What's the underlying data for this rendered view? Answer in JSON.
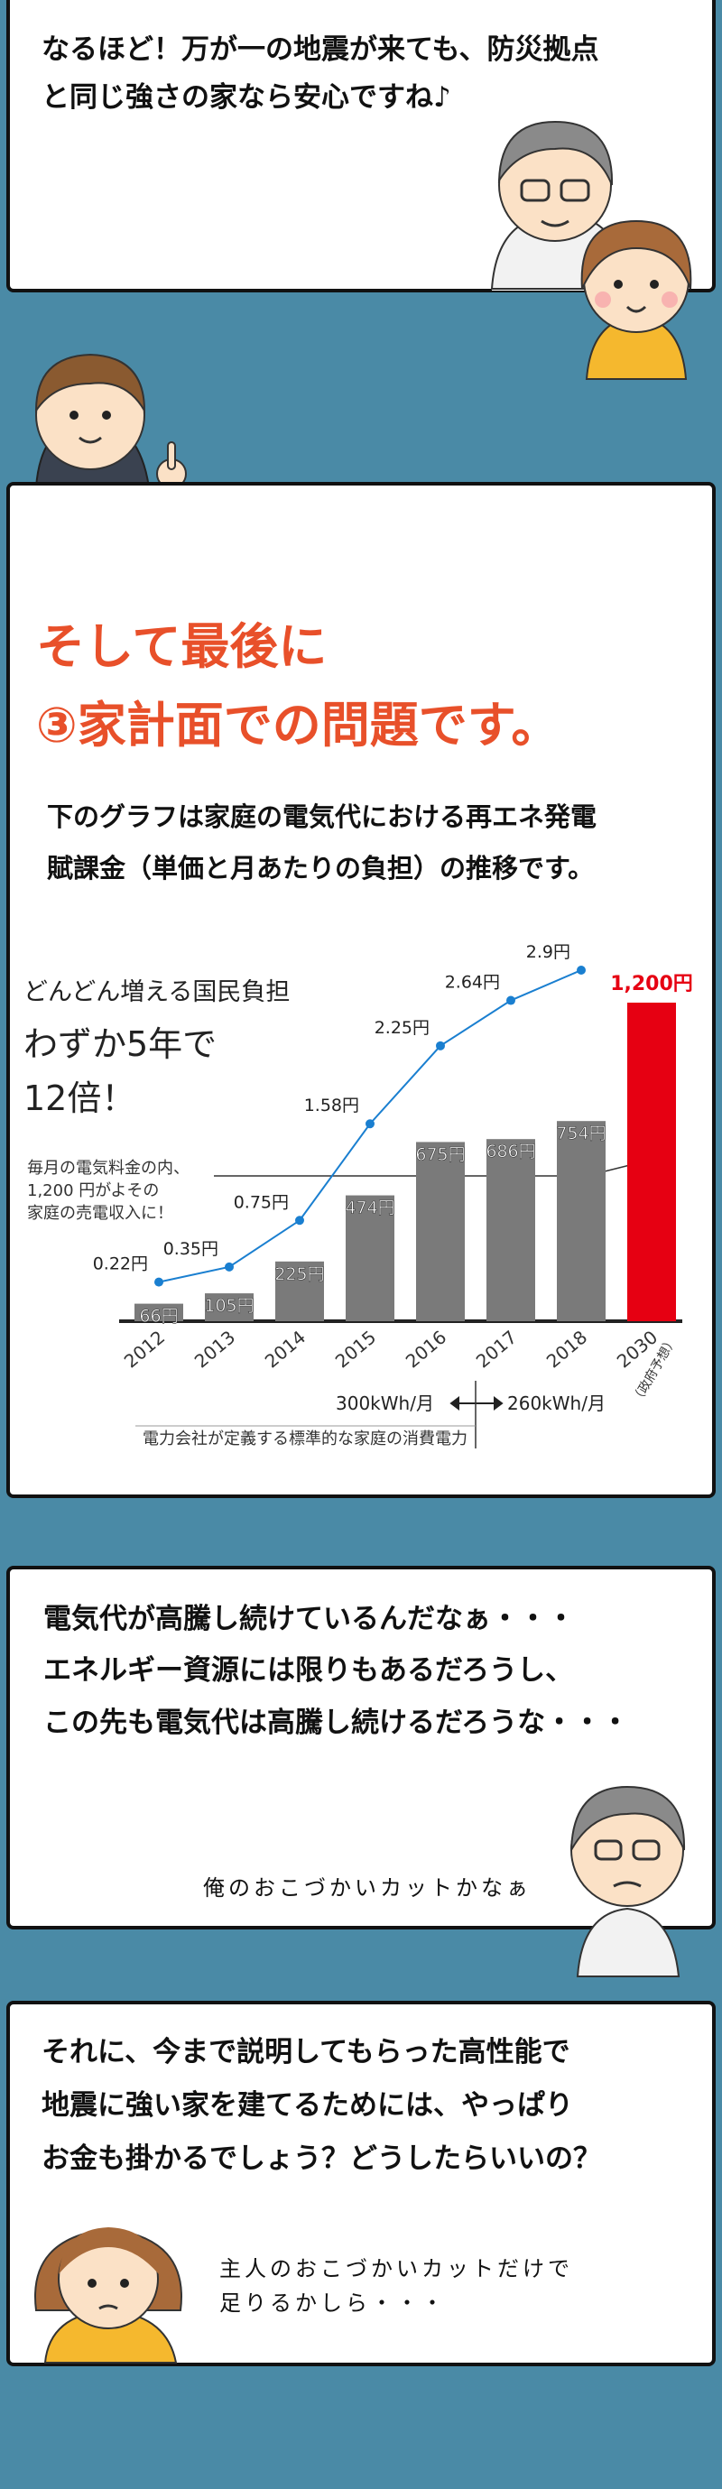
{
  "panels": [
    {
      "lines": [
        "なるほど！万が一の地震が来ても、防災拠点",
        "と同じ強さの家なら安心ですね♪"
      ]
    },
    {
      "heading": [
        "そして最後に",
        "③家計面での問題です。"
      ],
      "lines": [
        "下のグラフは家庭の電気代における再エネ発電",
        "賦課金（単価と月あたりの負担）の推移です。"
      ]
    },
    {
      "lines": [
        "電気代が高騰し続けているんだなぁ・・・",
        "エネルギー資源には限りもあるだろうし、",
        "この先も電気代は高騰し続けるだろうな・・・"
      ],
      "thought": [
        "俺のおこづかいカットかなぁ"
      ]
    },
    {
      "lines": [
        "それに、今まで説明してもらった高性能で",
        "地震に強い家を建てるためには、やっぱり",
        "お金も掛かるでしょう？どうしたらいいの？"
      ],
      "thought": [
        "主人のおこづかいカットだけで",
        "足りるかしら・・・"
      ]
    }
  ],
  "chart_data": {
    "type": "bar",
    "categories": [
      "2012",
      "2013",
      "2014",
      "2015",
      "2016",
      "2017",
      "2018",
      "2030"
    ],
    "category_note": "（政府予想）",
    "series": [
      {
        "type": "bar",
        "colors": [
          "#7a7a7a",
          "#7a7a7a",
          "#7a7a7a",
          "#7a7a7a",
          "#7a7a7a",
          "#7a7a7a",
          "#7a7a7a",
          "#e60012"
        ],
        "values": [
          66,
          105,
          225,
          474,
          675,
          686,
          754,
          1200
        ],
        "value_labels": [
          "66円",
          "105円",
          "225円",
          "474円",
          "675円",
          "686円",
          "754円",
          "1,200円"
        ]
      },
      {
        "type": "line",
        "color": "#1a7fd0",
        "values": [
          0.22,
          0.35,
          0.75,
          1.58,
          2.25,
          2.64,
          2.9,
          null
        ],
        "value_labels": [
          "0.22円",
          "0.35円",
          "0.75円",
          "1.58円",
          "2.25円",
          "2.64円",
          "2.9円",
          null
        ]
      }
    ],
    "title": [
      "どんどん増える国民負担",
      "わずか5年で",
      "12倍！"
    ],
    "annotation": [
      "毎月の電気料金の内、",
      "1,200 円がよその",
      "家庭の売電収入に！"
    ],
    "usage": [
      "300kWh/月",
      "260kWh/月"
    ],
    "usage_note": "電力会社が定義する標準的な家庭の消費電力"
  }
}
